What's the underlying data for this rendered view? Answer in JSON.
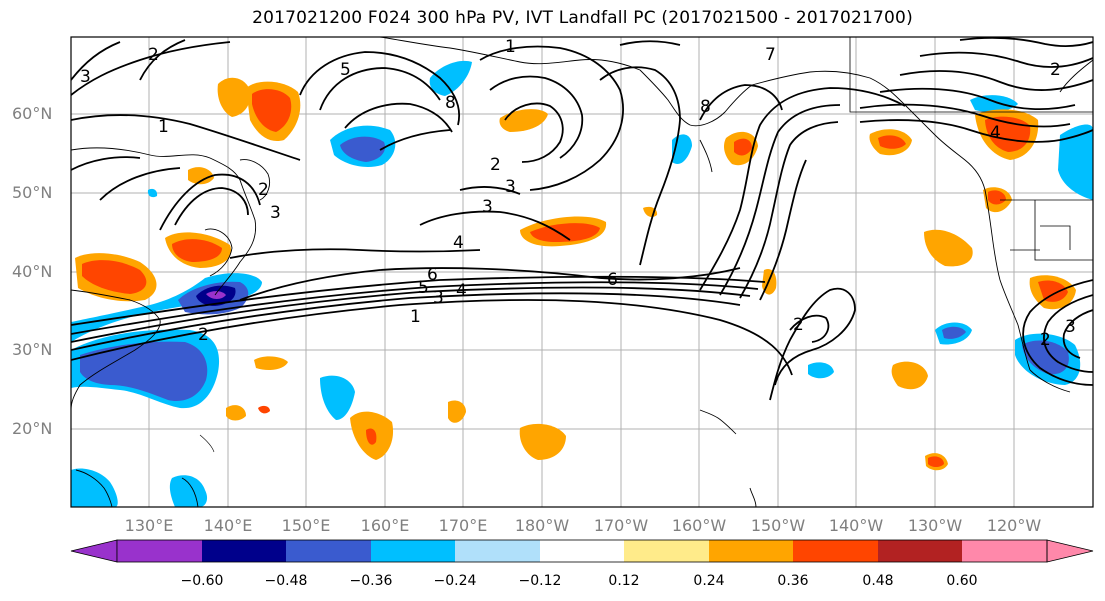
{
  "title": "2017021200 F024 300 hPa PV, IVT Landfall PC (2017021500 - 2017021700)",
  "lat_labels": [
    "60°N",
    "50°N",
    "40°N",
    "30°N",
    "20°N"
  ],
  "lon_labels": [
    "130°E",
    "140°E",
    "150°E",
    "160°E",
    "170°E",
    "180°W",
    "170°W",
    "160°W",
    "150°W",
    "140°W",
    "130°W",
    "120°W"
  ],
  "colorbar": {
    "ticks": [
      "−0.60",
      "−0.48",
      "−0.36",
      "−0.24",
      "−0.12",
      "0.12",
      "0.24",
      "0.36",
      "0.48",
      "0.60"
    ],
    "colors": [
      "#9932cc",
      "#00008b",
      "#3a5bcf",
      "#00bfff",
      "#b0e0fa",
      "#ffffff",
      "#ffeb8a",
      "#ffa500",
      "#ff4500",
      "#b22222",
      "#ff88aa"
    ]
  },
  "contour_labels": [
    "1",
    "2",
    "3",
    "4",
    "5",
    "6",
    "7",
    "8"
  ]
}
